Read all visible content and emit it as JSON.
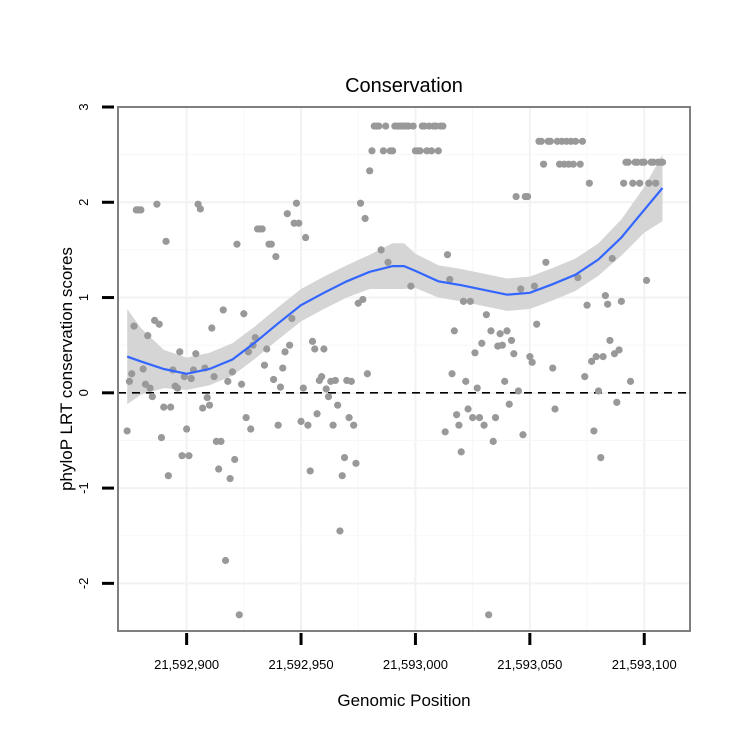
{
  "chart_data": {
    "type": "scatter",
    "title": "Conservation",
    "xlabel": "Genomic Position",
    "ylabel": "phyloP LRT conservation scores",
    "xlim": [
      21592870,
      21593120
    ],
    "ylim": [
      -2.5,
      3.0
    ],
    "x_ticks": [
      21592900,
      21592950,
      21593000,
      21593050,
      21593100
    ],
    "x_tick_labels": [
      "21,592,900",
      "21,592,950",
      "21,593,000",
      "21,593,050",
      "21,593,100"
    ],
    "y_ticks": [
      -2,
      -1,
      0,
      1,
      2,
      3
    ],
    "y_tick_labels": [
      "-2",
      "-1",
      "0",
      "1",
      "2",
      "3"
    ],
    "grid": true,
    "reference_line": {
      "y": 0,
      "style": "dashed",
      "color": "#000000"
    },
    "point_color": "#999999",
    "smooth_color": "#3366ff",
    "band_color": "#d3d3d3",
    "series": [
      {
        "name": "scores",
        "points": [
          [
            21592874,
            -0.4
          ],
          [
            21592875,
            0.12
          ],
          [
            21592876,
            0.2
          ],
          [
            21592877,
            0.7
          ],
          [
            21592878,
            1.92
          ],
          [
            21592879,
            1.92
          ],
          [
            21592880,
            1.92
          ],
          [
            21592881,
            0.25
          ],
          [
            21592882,
            0.09
          ],
          [
            21592883,
            0.6
          ],
          [
            21592884,
            0.05
          ],
          [
            21592885,
            -0.04
          ],
          [
            21592886,
            0.76
          ],
          [
            21592887,
            1.98
          ],
          [
            21592888,
            0.72
          ],
          [
            21592889,
            -0.47
          ],
          [
            21592890,
            -0.15
          ],
          [
            21592891,
            1.59
          ],
          [
            21592892,
            -0.87
          ],
          [
            21592893,
            -0.15
          ],
          [
            21592894,
            0.24
          ],
          [
            21592895,
            0.07
          ],
          [
            21592896,
            0.05
          ],
          [
            21592897,
            0.43
          ],
          [
            21592898,
            -0.66
          ],
          [
            21592899,
            0.17
          ],
          [
            21592900,
            -0.38
          ],
          [
            21592901,
            -0.66
          ],
          [
            21592902,
            0.15
          ],
          [
            21592903,
            0.24
          ],
          [
            21592904,
            0.41
          ],
          [
            21592905,
            1.98
          ],
          [
            21592906,
            1.93
          ],
          [
            21592907,
            -0.16
          ],
          [
            21592908,
            0.26
          ],
          [
            21592909,
            -0.05
          ],
          [
            21592910,
            -0.13
          ],
          [
            21592911,
            0.68
          ],
          [
            21592912,
            0.17
          ],
          [
            21592913,
            -0.51
          ],
          [
            21592914,
            -0.8
          ],
          [
            21592915,
            -0.51
          ],
          [
            21592916,
            0.87
          ],
          [
            21592917,
            -1.76
          ],
          [
            21592918,
            0.12
          ],
          [
            21592919,
            -0.9
          ],
          [
            21592920,
            0.22
          ],
          [
            21592921,
            -0.7
          ],
          [
            21592922,
            1.56
          ],
          [
            21592923,
            -2.33
          ],
          [
            21592924,
            0.09
          ],
          [
            21592925,
            0.83
          ],
          [
            21592926,
            -0.26
          ],
          [
            21592927,
            0.43
          ],
          [
            21592928,
            -0.38
          ],
          [
            21592929,
            0.5
          ],
          [
            21592930,
            0.58
          ],
          [
            21592931,
            1.72
          ],
          [
            21592932,
            1.72
          ],
          [
            21592933,
            1.72
          ],
          [
            21592934,
            0.29
          ],
          [
            21592935,
            0.46
          ],
          [
            21592936,
            1.56
          ],
          [
            21592937,
            1.56
          ],
          [
            21592938,
            0.14
          ],
          [
            21592939,
            1.43
          ],
          [
            21592940,
            -0.34
          ],
          [
            21592941,
            0.06
          ],
          [
            21592942,
            0.26
          ],
          [
            21592943,
            0.43
          ],
          [
            21592944,
            1.88
          ],
          [
            21592945,
            0.5
          ],
          [
            21592946,
            0.78
          ],
          [
            21592947,
            1.78
          ],
          [
            21592948,
            1.99
          ],
          [
            21592949,
            1.78
          ],
          [
            21592950,
            -0.3
          ],
          [
            21592951,
            0.05
          ],
          [
            21592952,
            1.63
          ],
          [
            21592953,
            -0.34
          ],
          [
            21592954,
            -0.82
          ],
          [
            21592955,
            0.54
          ],
          [
            21592956,
            0.46
          ],
          [
            21592957,
            -0.22
          ],
          [
            21592958,
            0.13
          ],
          [
            21592959,
            0.17
          ],
          [
            21592960,
            0.46
          ],
          [
            21592961,
            0.04
          ],
          [
            21592962,
            -0.04
          ],
          [
            21592963,
            0.12
          ],
          [
            21592964,
            -0.34
          ],
          [
            21592965,
            0.13
          ],
          [
            21592966,
            -0.13
          ],
          [
            21592967,
            -1.45
          ],
          [
            21592968,
            -0.87
          ],
          [
            21592969,
            -0.68
          ],
          [
            21592970,
            0.13
          ],
          [
            21592971,
            -0.26
          ],
          [
            21592972,
            0.12
          ],
          [
            21592973,
            -0.34
          ],
          [
            21592974,
            -0.74
          ],
          [
            21592975,
            0.94
          ],
          [
            21592976,
            1.99
          ],
          [
            21592977,
            0.98
          ],
          [
            21592978,
            1.83
          ],
          [
            21592979,
            0.2
          ],
          [
            21592980,
            2.33
          ],
          [
            21592981,
            2.54
          ],
          [
            21592982,
            2.8
          ],
          [
            21592983,
            2.8
          ],
          [
            21592984,
            2.8
          ],
          [
            21592985,
            1.5
          ],
          [
            21592986,
            2.54
          ],
          [
            21592987,
            2.8
          ],
          [
            21592988,
            1.37
          ],
          [
            21592989,
            2.54
          ],
          [
            21592990,
            2.54
          ],
          [
            21592991,
            2.8
          ],
          [
            21592992,
            2.8
          ],
          [
            21592993,
            2.8
          ],
          [
            21592994,
            2.8
          ],
          [
            21592995,
            2.8
          ],
          [
            21592996,
            2.8
          ],
          [
            21592997,
            2.8
          ],
          [
            21592998,
            1.12
          ],
          [
            21592999,
            2.8
          ],
          [
            21593000,
            2.54
          ],
          [
            21593001,
            2.54
          ],
          [
            21593002,
            2.54
          ],
          [
            21593003,
            2.8
          ],
          [
            21593004,
            2.8
          ],
          [
            21593005,
            2.54
          ],
          [
            21593006,
            2.8
          ],
          [
            21593007,
            2.54
          ],
          [
            21593008,
            2.8
          ],
          [
            21593009,
            2.8
          ],
          [
            21593010,
            2.54
          ],
          [
            21593011,
            2.8
          ],
          [
            21593012,
            2.8
          ],
          [
            21593013,
            -0.41
          ],
          [
            21593014,
            1.45
          ],
          [
            21593015,
            1.19
          ],
          [
            21593016,
            0.2
          ],
          [
            21593017,
            0.65
          ],
          [
            21593018,
            -0.23
          ],
          [
            21593019,
            -0.34
          ],
          [
            21593020,
            -0.62
          ],
          [
            21593021,
            0.96
          ],
          [
            21593022,
            0.12
          ],
          [
            21593023,
            -0.17
          ],
          [
            21593024,
            0.96
          ],
          [
            21593025,
            -0.26
          ],
          [
            21593026,
            0.42
          ],
          [
            21593027,
            0.05
          ],
          [
            21593028,
            -0.26
          ],
          [
            21593029,
            0.52
          ],
          [
            21593030,
            -0.34
          ],
          [
            21593031,
            0.82
          ],
          [
            21593032,
            -2.33
          ],
          [
            21593033,
            0.65
          ],
          [
            21593034,
            -0.51
          ],
          [
            21593035,
            -0.26
          ],
          [
            21593036,
            0.49
          ],
          [
            21593037,
            0.62
          ],
          [
            21593038,
            0.5
          ],
          [
            21593039,
            0.12
          ],
          [
            21593040,
            0.65
          ],
          [
            21593041,
            -0.12
          ],
          [
            21593042,
            0.55
          ],
          [
            21593043,
            0.41
          ],
          [
            21593044,
            2.06
          ],
          [
            21593045,
            0.02
          ],
          [
            21593046,
            1.09
          ],
          [
            21593047,
            -0.44
          ],
          [
            21593048,
            2.06
          ],
          [
            21593049,
            2.06
          ],
          [
            21593050,
            0.38
          ],
          [
            21593051,
            0.32
          ],
          [
            21593052,
            1.12
          ],
          [
            21593053,
            0.72
          ],
          [
            21593054,
            2.64
          ],
          [
            21593055,
            2.64
          ],
          [
            21593056,
            2.4
          ],
          [
            21593057,
            1.37
          ],
          [
            21593058,
            2.64
          ],
          [
            21593059,
            2.64
          ],
          [
            21593060,
            0.26
          ],
          [
            21593061,
            -0.17
          ],
          [
            21593062,
            2.64
          ],
          [
            21593063,
            2.4
          ],
          [
            21593064,
            2.64
          ],
          [
            21593065,
            2.4
          ],
          [
            21593066,
            2.64
          ],
          [
            21593067,
            2.4
          ],
          [
            21593068,
            2.64
          ],
          [
            21593069,
            2.4
          ],
          [
            21593070,
            2.64
          ],
          [
            21593071,
            1.21
          ],
          [
            21593072,
            2.4
          ],
          [
            21593073,
            2.64
          ],
          [
            21593074,
            0.17
          ],
          [
            21593075,
            0.92
          ],
          [
            21593076,
            2.2
          ],
          [
            21593077,
            0.33
          ],
          [
            21593078,
            -0.4
          ],
          [
            21593079,
            0.38
          ],
          [
            21593080,
            0.02
          ],
          [
            21593081,
            -0.68
          ],
          [
            21593082,
            0.38
          ],
          [
            21593083,
            1.02
          ],
          [
            21593084,
            0.93
          ],
          [
            21593085,
            0.55
          ],
          [
            21593086,
            1.41
          ],
          [
            21593087,
            0.41
          ],
          [
            21593088,
            -0.1
          ],
          [
            21593089,
            0.45
          ],
          [
            21593090,
            0.96
          ],
          [
            21593091,
            2.2
          ],
          [
            21593092,
            2.42
          ],
          [
            21593093,
            2.42
          ],
          [
            21593094,
            0.12
          ],
          [
            21593095,
            2.2
          ],
          [
            21593096,
            2.42
          ],
          [
            21593097,
            2.42
          ],
          [
            21593098,
            2.2
          ],
          [
            21593099,
            2.42
          ],
          [
            21593100,
            2.42
          ],
          [
            21593101,
            1.18
          ],
          [
            21593102,
            2.2
          ],
          [
            21593103,
            2.42
          ],
          [
            21593104,
            2.42
          ],
          [
            21593105,
            2.2
          ],
          [
            21593106,
            2.42
          ],
          [
            21593107,
            2.42
          ],
          [
            21593108,
            2.42
          ]
        ]
      }
    ],
    "smooth": {
      "method": "loess",
      "x": [
        21592874,
        21592880,
        21592890,
        21592900,
        21592910,
        21592920,
        21592930,
        21592940,
        21592950,
        21592960,
        21592970,
        21592980,
        21592990,
        21592995,
        21593000,
        21593010,
        21593020,
        21593030,
        21593040,
        21593050,
        21593060,
        21593070,
        21593080,
        21593090,
        21593100,
        21593108
      ],
      "y": [
        0.38,
        0.33,
        0.25,
        0.2,
        0.25,
        0.35,
        0.53,
        0.73,
        0.92,
        1.05,
        1.17,
        1.27,
        1.33,
        1.33,
        1.28,
        1.17,
        1.13,
        1.08,
        1.03,
        1.05,
        1.14,
        1.24,
        1.4,
        1.63,
        1.92,
        2.15
      ],
      "se": [
        0.5,
        0.35,
        0.2,
        0.17,
        0.17,
        0.17,
        0.17,
        0.17,
        0.17,
        0.17,
        0.17,
        0.18,
        0.24,
        0.24,
        0.18,
        0.17,
        0.17,
        0.17,
        0.17,
        0.17,
        0.17,
        0.17,
        0.17,
        0.19,
        0.24,
        0.35
      ]
    }
  }
}
